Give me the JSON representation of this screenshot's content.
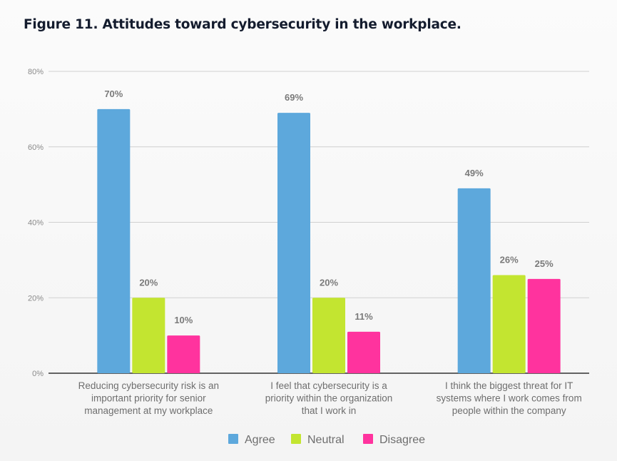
{
  "chart_data": {
    "type": "bar",
    "title": "Figure 11. Attitudes toward cybersecurity in the workplace.",
    "xlabel": "",
    "ylabel": "",
    "ylim": [
      0,
      80
    ],
    "yticks": [
      0,
      20,
      40,
      60,
      80
    ],
    "ytick_labels": [
      "0%",
      "20%",
      "40%",
      "60%",
      "80%"
    ],
    "grid": true,
    "legend_position": "bottom",
    "categories": [
      [
        "Reducing cybersecurity risk is an",
        "important priority for senior",
        "management at my workplace"
      ],
      [
        "I feel that cybersecurity is a",
        "priority within the organization",
        "that I work in"
      ],
      [
        "I think the biggest threat for IT",
        "systems where I work comes from",
        "people within the company"
      ]
    ],
    "series": [
      {
        "name": "Agree",
        "color": "#5da8dc",
        "values": [
          70,
          69,
          49
        ]
      },
      {
        "name": "Neutral",
        "color": "#c3e530",
        "values": [
          20,
          20,
          26
        ]
      },
      {
        "name": "Disagree",
        "color": "#ff339e",
        "values": [
          10,
          11,
          25
        ]
      }
    ],
    "value_suffix": "%"
  }
}
